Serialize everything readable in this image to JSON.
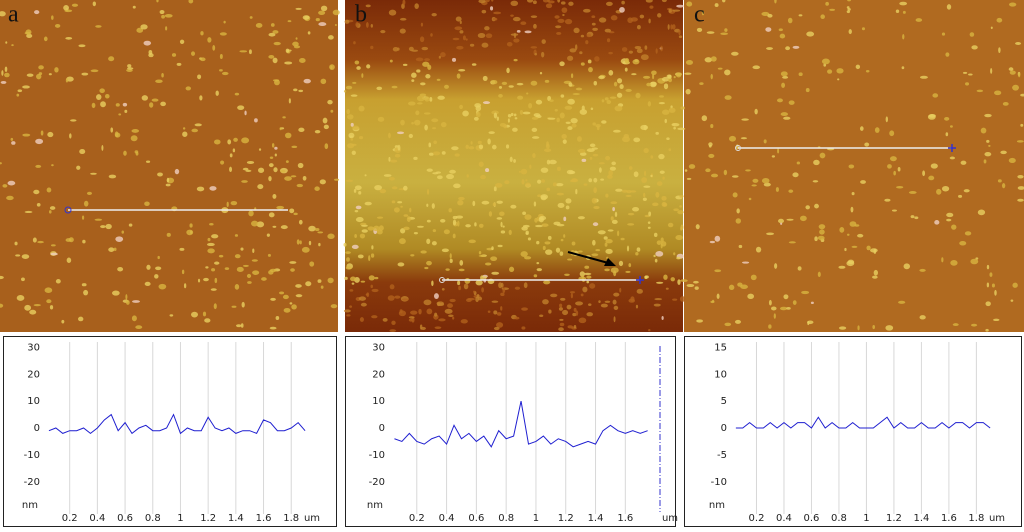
{
  "chart_data": [
    {
      "type": "line",
      "panel_label": "a",
      "x_unit": "um",
      "y_unit": "nm",
      "x": [
        0.05,
        0.1,
        0.15,
        0.2,
        0.25,
        0.3,
        0.35,
        0.4,
        0.45,
        0.5,
        0.55,
        0.6,
        0.65,
        0.7,
        0.75,
        0.8,
        0.85,
        0.9,
        0.95,
        1,
        1.05,
        1.1,
        1.15,
        1.2,
        1.25,
        1.3,
        1.35,
        1.4,
        1.45,
        1.5,
        1.55,
        1.6,
        1.65,
        1.7,
        1.75,
        1.8,
        1.85,
        1.9
      ],
      "series": [
        {
          "color": "#1f1fd0",
          "values": [
            -1,
            0,
            -2,
            -1,
            -1,
            0,
            -2,
            0,
            3,
            5,
            -1,
            2,
            -2,
            0,
            1,
            -1,
            -1,
            0,
            5,
            -2,
            0,
            -1,
            -1,
            4,
            0,
            -1,
            0,
            -2,
            -1,
            -1,
            -2,
            3,
            2,
            -1,
            -1,
            0,
            2,
            -1
          ]
        }
      ],
      "xlim": [
        0,
        1.95
      ],
      "xticks": [
        0.2,
        0.4,
        0.6,
        0.8,
        1,
        1.2,
        1.4,
        1.6,
        1.8
      ],
      "ylim": [
        -32,
        32
      ],
      "yticks": [
        30,
        20,
        10,
        0,
        -10,
        -20
      ],
      "grid": "x"
    },
    {
      "type": "line",
      "panel_label": "b",
      "x_unit": "um",
      "y_unit": "nm",
      "x": [
        0.05,
        0.1,
        0.15,
        0.2,
        0.25,
        0.3,
        0.35,
        0.4,
        0.45,
        0.5,
        0.55,
        0.6,
        0.65,
        0.7,
        0.75,
        0.8,
        0.85,
        0.9,
        0.95,
        1,
        1.05,
        1.1,
        1.15,
        1.2,
        1.25,
        1.3,
        1.35,
        1.4,
        1.45,
        1.5,
        1.55,
        1.6,
        1.65,
        1.7,
        1.75
      ],
      "series": [
        {
          "color": "#1f1fd0",
          "values": [
            -4,
            -5,
            -2,
            -5,
            -6,
            -4,
            -3,
            -6,
            1,
            -4,
            -2,
            -5,
            -3,
            -7,
            -1,
            -4,
            -3,
            10,
            -6,
            -5,
            -3,
            -6,
            -4,
            -5,
            -7,
            -6,
            -5,
            -6,
            -1,
            1,
            -1,
            -2,
            -1,
            -2,
            -1
          ]
        }
      ],
      "xlim": [
        0,
        1.9
      ],
      "xticks": [
        0.2,
        0.4,
        0.6,
        0.8,
        1,
        1.2,
        1.4,
        1.6
      ],
      "ylim": [
        -32,
        32
      ],
      "yticks": [
        30,
        20,
        10,
        0,
        -10,
        -20
      ],
      "grid": "x"
    },
    {
      "type": "line",
      "panel_label": "c",
      "x_unit": "um",
      "y_unit": "nm",
      "x": [
        0.05,
        0.1,
        0.15,
        0.2,
        0.25,
        0.3,
        0.35,
        0.4,
        0.45,
        0.5,
        0.55,
        0.6,
        0.65,
        0.7,
        0.75,
        0.8,
        0.85,
        0.9,
        0.95,
        1,
        1.05,
        1.1,
        1.15,
        1.2,
        1.25,
        1.3,
        1.35,
        1.4,
        1.45,
        1.5,
        1.55,
        1.6,
        1.65,
        1.7,
        1.75,
        1.8,
        1.85,
        1.9
      ],
      "series": [
        {
          "color": "#1f1fd0",
          "values": [
            0,
            0,
            1,
            0,
            0,
            1,
            0,
            1,
            0,
            1,
            1,
            0,
            2,
            0,
            1,
            0,
            0,
            1,
            0,
            0,
            0,
            1,
            2,
            0,
            1,
            0,
            0,
            1,
            0,
            0,
            1,
            0,
            1,
            1,
            0,
            1,
            1,
            0
          ]
        }
      ],
      "xlim": [
        0,
        1.95
      ],
      "xticks": [
        0.2,
        0.4,
        0.6,
        0.8,
        1,
        1.2,
        1.4,
        1.6,
        1.8
      ],
      "ylim": [
        -16,
        16
      ],
      "yticks": [
        15,
        10,
        5,
        0,
        -5,
        -10
      ],
      "grid": "x"
    }
  ]
}
